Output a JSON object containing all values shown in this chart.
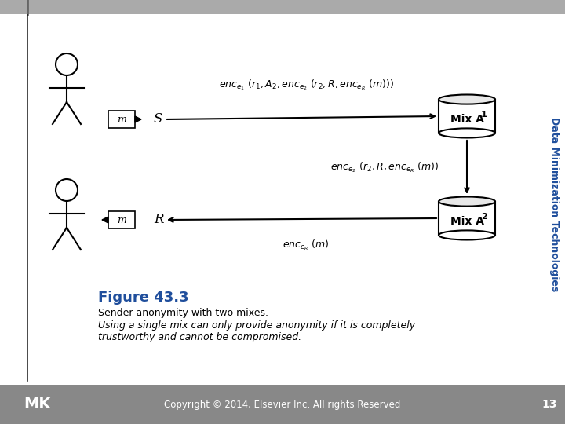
{
  "bg_color": "#ffffff",
  "sidebar_color": "#c0c0c0",
  "sidebar_blue": "#4472c4",
  "figure_title": "Figure 43.3",
  "caption_line1": "Sender anonymity with two mixes.",
  "caption_line2": "Using a single mix can only provide anonymity if it is completely",
  "caption_line3": "trustworthy and cannot be compromised.",
  "copyright_text": "Copyright © 2014, Elsevier Inc. All rights Reserved",
  "page_number": "13",
  "sidebar_text": "Data Minimization Technologies",
  "mix_a1_label": "Mix A",
  "mix_a1_sub": "1",
  "mix_a2_label": "Mix A",
  "mix_a2_sub": "2",
  "sender_label": "S",
  "receiver_label": "R",
  "msg_label": "m",
  "enc_top_label": "enc",
  "enc_mid_label": "enc",
  "enc_bot_label": "enc"
}
